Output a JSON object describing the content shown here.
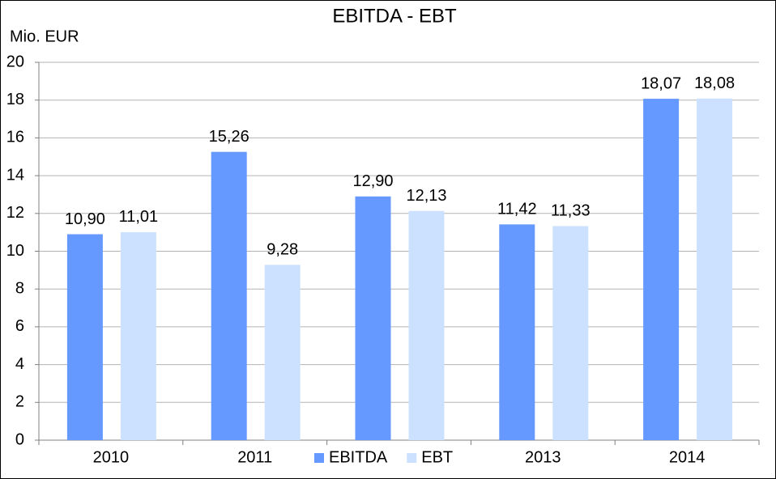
{
  "chart_data": {
    "type": "bar",
    "title": "EBITDA - EBT",
    "y_axis_label": "Mio. EUR",
    "categories": [
      "2010",
      "2011",
      null,
      "2013",
      "2014"
    ],
    "series": [
      {
        "name": "EBITDA",
        "color": "#6699ff",
        "values": [
          10.9,
          15.26,
          12.9,
          11.42,
          18.07
        ],
        "value_labels": [
          "10,90",
          "15,26",
          "12,90",
          "11,42",
          "18,07"
        ]
      },
      {
        "name": "EBT",
        "color": "#cce0ff",
        "values": [
          11.01,
          9.28,
          12.13,
          11.33,
          18.08
        ],
        "value_labels": [
          "11,01",
          "9,28",
          "12,13",
          "11,33",
          "18,08"
        ]
      }
    ],
    "ylim": [
      0,
      20
    ],
    "yticks": [
      0,
      2,
      4,
      6,
      8,
      10,
      12,
      14,
      16,
      18,
      20
    ],
    "grid": true,
    "legend": "bottom"
  }
}
